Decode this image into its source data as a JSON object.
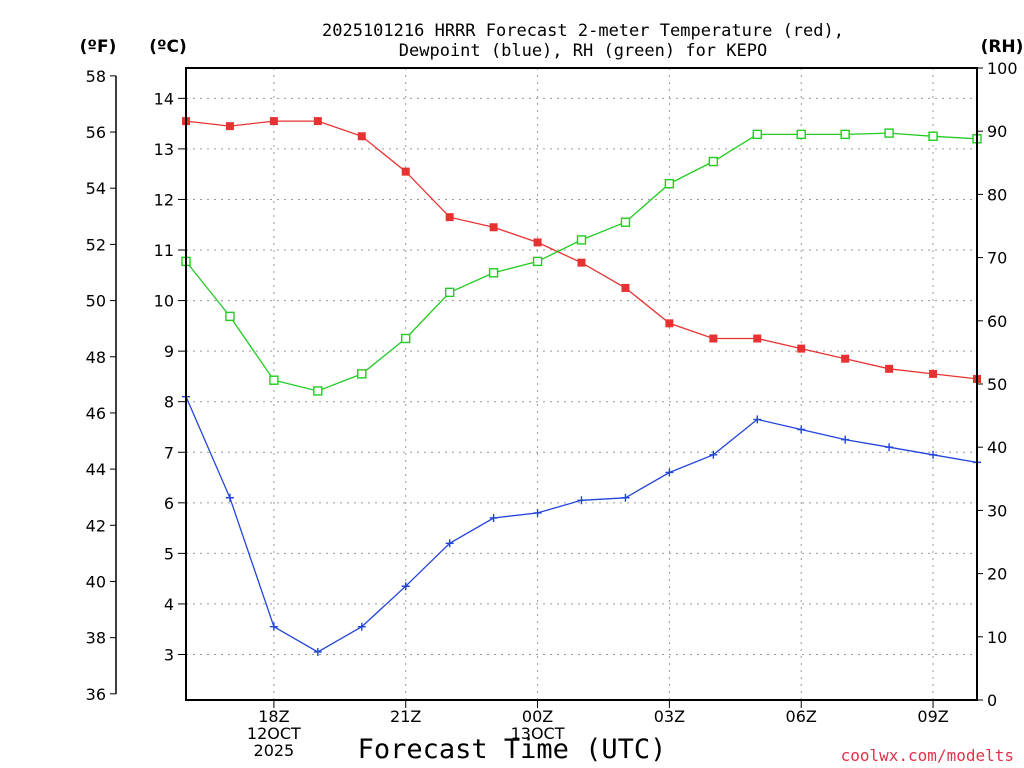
{
  "chart_data": {
    "type": "line",
    "title_line1": "2025101216 HRRR Forecast 2-meter Temperature (red),",
    "title_line2": "Dewpoint (blue), RH (green) for KEPO",
    "xlabel": "Forecast Time (UTC)",
    "credit": "coolwx.com/modelts",
    "units": {
      "f": "(ºF)",
      "c": "(ºC)",
      "rh": "(RH)"
    },
    "x_range": [
      0,
      18
    ],
    "x_ticks": [
      {
        "x": 2,
        "lines": [
          "18Z",
          "12OCT",
          "2025"
        ]
      },
      {
        "x": 5,
        "lines": [
          "21Z"
        ]
      },
      {
        "x": 8,
        "lines": [
          "00Z",
          "13OCT"
        ]
      },
      {
        "x": 11,
        "lines": [
          "03Z"
        ]
      },
      {
        "x": 14,
        "lines": [
          "06Z"
        ]
      },
      {
        "x": 17,
        "lines": [
          "09Z"
        ]
      }
    ],
    "axes": {
      "celsius": {
        "range": [
          2.1,
          14.6
        ],
        "ticks": [
          3,
          4,
          5,
          6,
          7,
          8,
          9,
          10,
          11,
          12,
          13,
          14
        ]
      },
      "fahrenheit": {
        "range": [
          35.78,
          58.28
        ],
        "ticks": [
          36,
          38,
          40,
          42,
          44,
          46,
          48,
          50,
          52,
          54,
          56,
          58
        ]
      },
      "rh": {
        "range": [
          0,
          100
        ],
        "ticks": [
          0,
          10,
          20,
          30,
          40,
          50,
          60,
          70,
          80,
          90,
          100
        ]
      }
    },
    "series": [
      {
        "name": "Temperature",
        "axis": "celsius",
        "color": "#e83232",
        "marker": "filled-square",
        "x": [
          0,
          1,
          2,
          3,
          4,
          5,
          6,
          7,
          8,
          9,
          10,
          11,
          12,
          13,
          14,
          15,
          16,
          17,
          18
        ],
        "values": [
          13.55,
          13.45,
          13.55,
          13.55,
          13.25,
          12.55,
          11.65,
          11.45,
          11.15,
          10.75,
          10.25,
          9.55,
          9.25,
          9.25,
          9.05,
          8.85,
          8.65,
          8.55,
          8.45
        ]
      },
      {
        "name": "Dewpoint",
        "axis": "celsius",
        "color": "#2244dd",
        "marker": "plus",
        "x": [
          0,
          1,
          2,
          3,
          4,
          5,
          6,
          7,
          8,
          9,
          10,
          11,
          12,
          13,
          14,
          15,
          16,
          17,
          18
        ],
        "values": [
          8.1,
          6.1,
          3.55,
          3.05,
          3.55,
          4.35,
          5.2,
          5.7,
          5.8,
          6.05,
          6.1,
          6.6,
          6.95,
          7.65,
          7.45,
          7.25,
          7.1,
          6.95,
          6.8
        ]
      },
      {
        "name": "RH",
        "axis": "rh",
        "color": "#22cc22",
        "marker": "open-square",
        "x": [
          0,
          1,
          2,
          3,
          4,
          5,
          6,
          7,
          8,
          9,
          10,
          11,
          12,
          13,
          14,
          15,
          16,
          17,
          18
        ],
        "values": [
          69.4,
          60.7,
          50.6,
          48.9,
          51.6,
          57.2,
          64.5,
          67.6,
          69.4,
          72.8,
          75.6,
          81.7,
          85.2,
          89.5,
          89.5,
          89.5,
          89.7,
          89.2,
          88.8
        ]
      }
    ]
  }
}
